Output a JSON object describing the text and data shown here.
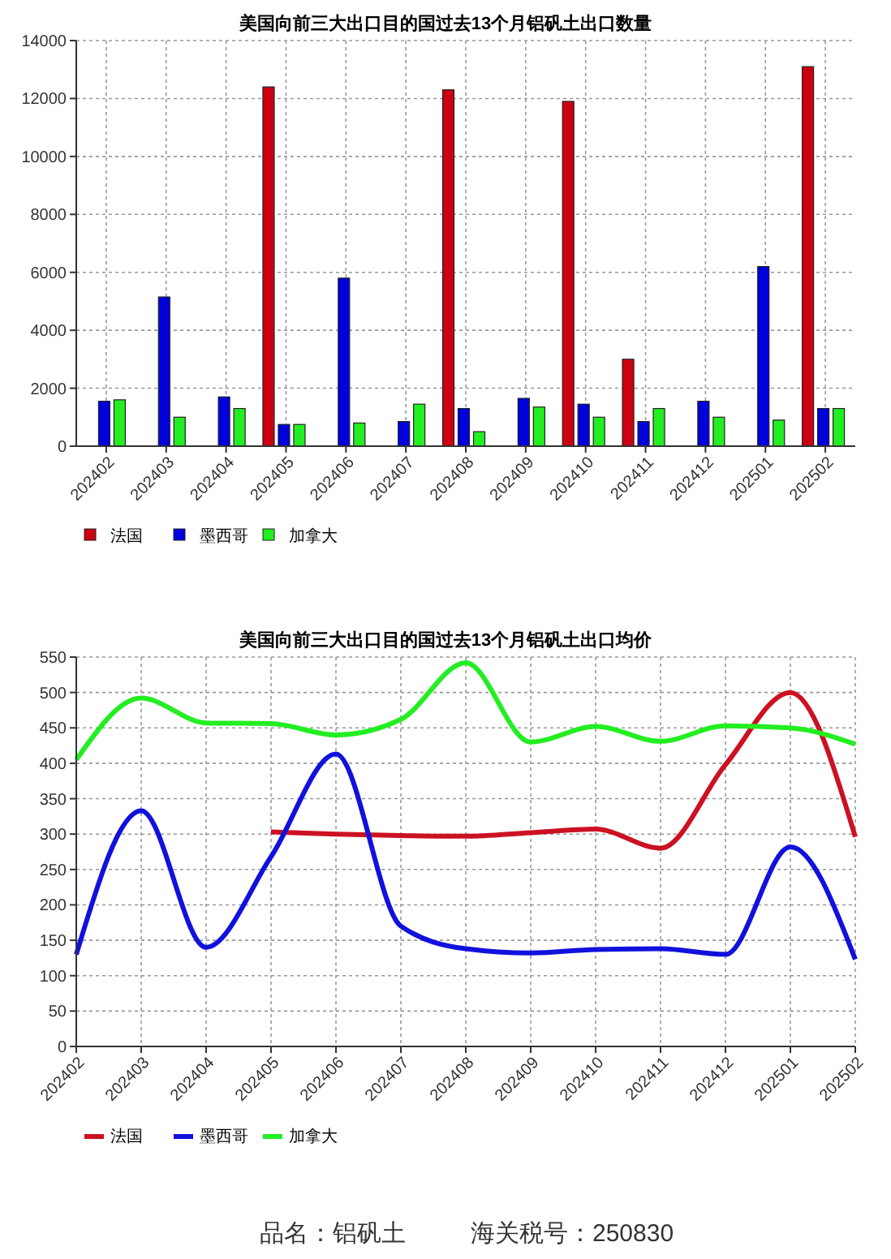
{
  "chart_data": [
    {
      "type": "bar",
      "title": "美国向前三大出口目的国过去13个月铝矾土出口数量",
      "categories": [
        "202402",
        "202403",
        "202404",
        "202405",
        "202406",
        "202407",
        "202408",
        "202409",
        "202410",
        "202411",
        "202412",
        "202501",
        "202502"
      ],
      "series": [
        {
          "name": "法国",
          "color": "#cc0011",
          "values": [
            null,
            null,
            null,
            12400,
            null,
            null,
            12300,
            null,
            11900,
            3000,
            null,
            null,
            13100
          ]
        },
        {
          "name": "墨西哥",
          "color": "#0000dd",
          "values": [
            1550,
            5150,
            1700,
            750,
            5800,
            850,
            1300,
            1650,
            1450,
            850,
            1550,
            6200,
            1300
          ]
        },
        {
          "name": "加拿大",
          "color": "#22ee22",
          "values": [
            1600,
            1000,
            1300,
            750,
            800,
            1450,
            500,
            1350,
            1000,
            1300,
            1000,
            900,
            1300
          ]
        }
      ],
      "ylim": [
        0,
        14000
      ],
      "yticks": [
        0,
        2000,
        4000,
        6000,
        8000,
        10000,
        12000,
        14000
      ],
      "grid": true,
      "legend": "bottom left"
    },
    {
      "type": "line",
      "title": "美国向前三大出口目的国过去13个月铝矾土出口均价",
      "categories": [
        "202402",
        "202403",
        "202404",
        "202405",
        "202406",
        "202407",
        "202408",
        "202409",
        "202410",
        "202411",
        "202412",
        "202501",
        "202502"
      ],
      "series": [
        {
          "name": "法国",
          "color": "#cc1122",
          "values": [
            null,
            null,
            null,
            303,
            300,
            298,
            297,
            302,
            307,
            280,
            398,
            500,
            296
          ]
        },
        {
          "name": "墨西哥",
          "color": "#1111dd",
          "values": [
            130,
            333,
            140,
            268,
            413,
            170,
            138,
            132,
            137,
            138,
            130,
            282,
            123
          ]
        },
        {
          "name": "加拿大",
          "color": "#22ee22",
          "values": [
            405,
            492,
            457,
            456,
            440,
            462,
            542,
            430,
            452,
            431,
            453,
            450,
            427
          ]
        }
      ],
      "ylim": [
        0,
        550
      ],
      "yticks": [
        0,
        50,
        100,
        150,
        200,
        250,
        300,
        350,
        400,
        450,
        500,
        550
      ],
      "grid": true,
      "legend": "bottom left",
      "marker": "none",
      "line_style": "solid",
      "annotations": [
        "品名：铝矾土",
        "海关税号：250830"
      ]
    }
  ]
}
